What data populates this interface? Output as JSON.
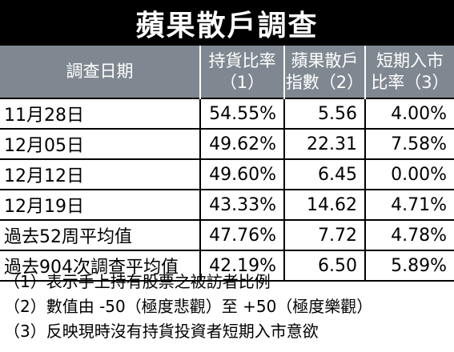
{
  "title": "蘋果散戶調查",
  "headers": {
    "date": "調查日期",
    "holding_1": "持貨比率",
    "holding_2": "（1）",
    "index_1": "蘋果散戶",
    "index_2": "指數（2）",
    "entry_1": "短期入市",
    "entry_2": "比率（3）"
  },
  "rows": [
    {
      "date": "11月28日",
      "holding": "54.55%",
      "index": "5.56",
      "entry": "4.00%"
    },
    {
      "date": "12月05日",
      "holding": "49.62%",
      "index": "22.31",
      "entry": "7.58%"
    },
    {
      "date": "12月12日",
      "holding": "49.60%",
      "index": "6.45",
      "entry": "0.00%"
    },
    {
      "date": "12月19日",
      "holding": "43.33%",
      "index": "14.62",
      "entry": "4.71%"
    },
    {
      "date": "過去52周平均值",
      "holding": "47.76%",
      "index": "7.72",
      "entry": "4.78%"
    },
    {
      "date": "過去904次調查平均值",
      "holding": "42.19%",
      "index": "6.50",
      "entry": "5.89%"
    }
  ],
  "notes": [
    "（1）表示手上持有股票之被訪者比例",
    "（2）數值由 -50（極度悲觀）至 +50（極度樂觀）",
    "（3）反映現時沒有持貨投資者短期入市意欲"
  ]
}
